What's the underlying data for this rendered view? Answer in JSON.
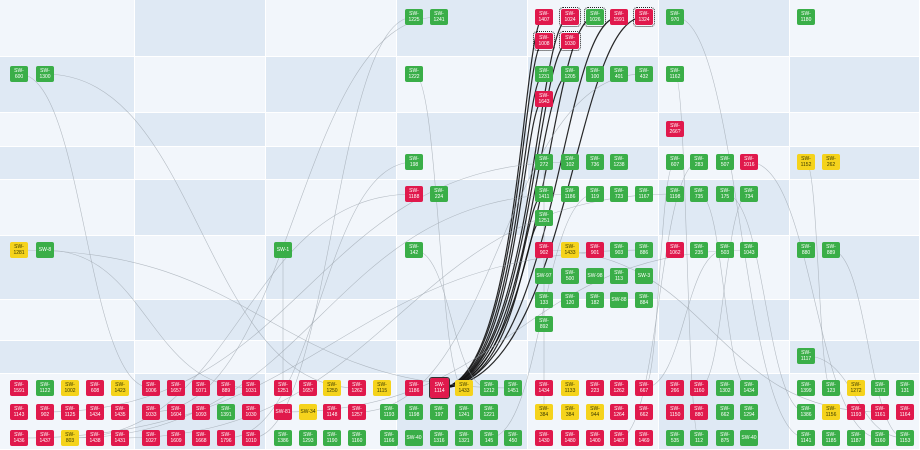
{
  "colors": {
    "light_cell": "#f2f6fb",
    "dark_cell": "#dfe9f4",
    "green": "#3aae48",
    "red": "#e0194c",
    "yellow": "#f5d31c",
    "link": "#9aa3ab",
    "link_strong": "#111111"
  },
  "cards": [
    {
      "label": "SW-1225",
      "color": "green"
    },
    {
      "label": "SW-1241",
      "color": "green"
    },
    {
      "label": "SW-1407",
      "color": "red"
    },
    {
      "label": "SW-1024",
      "color": "red"
    },
    {
      "label": "SW-1026",
      "color": "green"
    },
    {
      "label": "SW-1591",
      "color": "red"
    },
    {
      "label": "SW-1324",
      "color": "red"
    },
    {
      "label": "SW-1008",
      "color": "red"
    },
    {
      "label": "SW-1030",
      "color": "red"
    },
    {
      "label": "SW-970",
      "color": "green"
    },
    {
      "label": "SW-1180",
      "color": "green"
    },
    {
      "label": "SW-600",
      "color": "green"
    },
    {
      "label": "SW-1300",
      "color": "green"
    },
    {
      "label": "SW-1222",
      "color": "green"
    },
    {
      "label": "SW-1231",
      "color": "green"
    },
    {
      "label": "SW-1205",
      "color": "green"
    },
    {
      "label": "SW-100",
      "color": "green"
    },
    {
      "label": "SW-401",
      "color": "green"
    },
    {
      "label": "SW-432",
      "color": "green"
    },
    {
      "label": "SW-1162",
      "color": "green"
    },
    {
      "label": "SW-1643",
      "color": "red"
    },
    {
      "label": "SW-266?",
      "color": "red"
    },
    {
      "label": "SW-198",
      "color": "green"
    },
    {
      "label": "SW-272",
      "color": "green"
    },
    {
      "label": "SW-102",
      "color": "green"
    },
    {
      "label": "SW-736",
      "color": "green"
    },
    {
      "label": "SW-1238",
      "color": "green"
    },
    {
      "label": "SW-607",
      "color": "green"
    },
    {
      "label": "SW-283",
      "color": "green"
    },
    {
      "label": "SW-507",
      "color": "green"
    },
    {
      "label": "SW-1016",
      "color": "red"
    },
    {
      "label": "SW-1152",
      "color": "yellow"
    },
    {
      "label": "SW-262",
      "color": "yellow"
    },
    {
      "label": "SW-1188",
      "color": "red"
    },
    {
      "label": "SW-224",
      "color": "green"
    },
    {
      "label": "SW-1411",
      "color": "green"
    },
    {
      "label": "SW-1186",
      "color": "green"
    },
    {
      "label": "SW-119",
      "color": "green"
    },
    {
      "label": "SW-723",
      "color": "green"
    },
    {
      "label": "SW-1167",
      "color": "green"
    },
    {
      "label": "SW-1198",
      "color": "green"
    },
    {
      "label": "SW-735",
      "color": "green"
    },
    {
      "label": "SW-175",
      "color": "green"
    },
    {
      "label": "SW-734",
      "color": "green"
    },
    {
      "label": "SW-1251",
      "color": "green"
    },
    {
      "label": "SW-1281",
      "color": "yellow"
    },
    {
      "label": "SW-8",
      "color": "green"
    },
    {
      "label": "SW-1",
      "color": "green"
    },
    {
      "label": "SW-142",
      "color": "green"
    },
    {
      "label": "SW-902",
      "color": "red"
    },
    {
      "label": "SW-1433",
      "color": "yellow"
    },
    {
      "label": "SW-901",
      "color": "red"
    },
    {
      "label": "SW-903",
      "color": "green"
    },
    {
      "label": "SW-886",
      "color": "green"
    },
    {
      "label": "SW-1062",
      "color": "red"
    },
    {
      "label": "SW-235",
      "color": "green"
    },
    {
      "label": "SW-503",
      "color": "green"
    },
    {
      "label": "SW-1043",
      "color": "green"
    },
    {
      "label": "SW-880",
      "color": "green"
    },
    {
      "label": "SW-889",
      "color": "green"
    },
    {
      "label": "SW-97",
      "color": "green"
    },
    {
      "label": "SW-500",
      "color": "green"
    },
    {
      "label": "SW-98",
      "color": "green"
    },
    {
      "label": "SW-113",
      "color": "green"
    },
    {
      "label": "SW-3",
      "color": "green"
    },
    {
      "label": "SW-133",
      "color": "green"
    },
    {
      "label": "SW-120",
      "color": "green"
    },
    {
      "label": "SW-182",
      "color": "green"
    },
    {
      "label": "SW-88",
      "color": "green"
    },
    {
      "label": "SW-884",
      "color": "green"
    },
    {
      "label": "SW-892",
      "color": "green"
    },
    {
      "label": "SW-1117",
      "color": "green"
    },
    {
      "label": "SW-1591",
      "color": "red"
    },
    {
      "label": "SW-1122",
      "color": "green"
    },
    {
      "label": "SW-1002",
      "color": "yellow"
    },
    {
      "label": "SW-608",
      "color": "red"
    },
    {
      "label": "SW-1423",
      "color": "yellow"
    },
    {
      "label": "SW-1006",
      "color": "red"
    },
    {
      "label": "SW-1657",
      "color": "red"
    },
    {
      "label": "SW-1071",
      "color": "red"
    },
    {
      "label": "SW-889",
      "color": "red"
    },
    {
      "label": "SW-1031",
      "color": "red"
    },
    {
      "label": "SW-1251",
      "color": "red"
    },
    {
      "label": "SW-1657",
      "color": "red"
    },
    {
      "label": "SW-1250",
      "color": "yellow"
    },
    {
      "label": "SW-1262",
      "color": "red"
    },
    {
      "label": "SW-1115",
      "color": "yellow"
    },
    {
      "label": "SW-1186",
      "color": "red"
    },
    {
      "label": "SW-1114",
      "color": "red"
    },
    {
      "label": "SW-1433",
      "color": "yellow"
    },
    {
      "label": "SW-1212",
      "color": "green"
    },
    {
      "label": "SW-1451",
      "color": "green"
    },
    {
      "label": "SW-1434",
      "color": "red"
    },
    {
      "label": "SW-1133",
      "color": "yellow"
    },
    {
      "label": "SW-223",
      "color": "red"
    },
    {
      "label": "SW-1262",
      "color": "red"
    },
    {
      "label": "SW-667",
      "color": "red"
    },
    {
      "label": "SW-266",
      "color": "red"
    },
    {
      "label": "SW-1160",
      "color": "red"
    },
    {
      "label": "SW-1302",
      "color": "green"
    },
    {
      "label": "SW-1434",
      "color": "green"
    },
    {
      "label": "SW-1399",
      "color": "green"
    },
    {
      "label": "SW-123",
      "color": "green"
    },
    {
      "label": "SW-1272",
      "color": "yellow"
    },
    {
      "label": "SW-1371",
      "color": "green"
    },
    {
      "label": "SW-131",
      "color": "green"
    },
    {
      "label": "SW-1143",
      "color": "red"
    },
    {
      "label": "SW-902",
      "color": "red"
    },
    {
      "label": "SW-1125",
      "color": "red"
    },
    {
      "label": "SW-1434",
      "color": "red"
    },
    {
      "label": "SW-1435",
      "color": "red"
    },
    {
      "label": "SW-1033",
      "color": "red"
    },
    {
      "label": "SW-1604",
      "color": "red"
    },
    {
      "label": "SW-1093",
      "color": "red"
    },
    {
      "label": "SW-1391",
      "color": "green"
    },
    {
      "label": "SW-1030",
      "color": "red"
    },
    {
      "label": "SW-81",
      "color": "red"
    },
    {
      "label": "SW-34",
      "color": "yellow"
    },
    {
      "label": "SW-1148",
      "color": "red"
    },
    {
      "label": "SW-1257",
      "color": "red"
    },
    {
      "label": "SW-1193",
      "color": "green"
    },
    {
      "label": "SW-1198",
      "color": "green"
    },
    {
      "label": "SW-197",
      "color": "green"
    },
    {
      "label": "SW-1241",
      "color": "green"
    },
    {
      "label": "SW-1221",
      "color": "green"
    },
    {
      "label": "SW-384",
      "color": "yellow"
    },
    {
      "label": "SW-384",
      "color": "yellow"
    },
    {
      "label": "SW-944",
      "color": "yellow"
    },
    {
      "label": "SW-1264",
      "color": "red"
    },
    {
      "label": "SW-662",
      "color": "red"
    },
    {
      "label": "SW-1150",
      "color": "red"
    },
    {
      "label": "SW-880",
      "color": "red"
    },
    {
      "label": "SW-662",
      "color": "green"
    },
    {
      "label": "SW-1294",
      "color": "green"
    },
    {
      "label": "SW-1386",
      "color": "green"
    },
    {
      "label": "SW-1156",
      "color": "yellow"
    },
    {
      "label": "SW-1193",
      "color": "red"
    },
    {
      "label": "SW-1161",
      "color": "red"
    },
    {
      "label": "SW-1164",
      "color": "red"
    },
    {
      "label": "SW-1436",
      "color": "red"
    },
    {
      "label": "SW-1437",
      "color": "red"
    },
    {
      "label": "SW-803",
      "color": "yellow"
    },
    {
      "label": "SW-1438",
      "color": "red"
    },
    {
      "label": "SW-1431",
      "color": "red"
    },
    {
      "label": "SW-1027",
      "color": "red"
    },
    {
      "label": "SW-1609",
      "color": "red"
    },
    {
      "label": "SW-1668",
      "color": "red"
    },
    {
      "label": "SW-1796",
      "color": "red"
    },
    {
      "label": "SW-1010",
      "color": "red"
    },
    {
      "label": "SW-1386",
      "color": "green"
    },
    {
      "label": "SW-1293",
      "color": "green"
    },
    {
      "label": "SW-1190",
      "color": "green"
    },
    {
      "label": "SW-1160",
      "color": "green"
    },
    {
      "label": "SW-1166",
      "color": "green"
    },
    {
      "label": "SW-40",
      "color": "green"
    },
    {
      "label": "SW-1316",
      "color": "green"
    },
    {
      "label": "SW-1321",
      "color": "green"
    },
    {
      "label": "SW-145",
      "color": "green"
    },
    {
      "label": "SW-450",
      "color": "green"
    },
    {
      "label": "SW-1430",
      "color": "red"
    },
    {
      "label": "SW-1480",
      "color": "red"
    },
    {
      "label": "SW-1400",
      "color": "red"
    },
    {
      "label": "SW-1487",
      "color": "red"
    },
    {
      "label": "SW-1469",
      "color": "red"
    },
    {
      "label": "SW-535",
      "color": "green"
    },
    {
      "label": "SW-112",
      "color": "green"
    },
    {
      "label": "SW-875",
      "color": "green"
    },
    {
      "label": "SW-40",
      "color": "green"
    },
    {
      "label": "SW-1141",
      "color": "green"
    },
    {
      "label": "SW-1185",
      "color": "green"
    },
    {
      "label": "SW-1187",
      "color": "green"
    },
    {
      "label": "SW-1160",
      "color": "green"
    },
    {
      "label": "SW-1153",
      "color": "green"
    }
  ]
}
